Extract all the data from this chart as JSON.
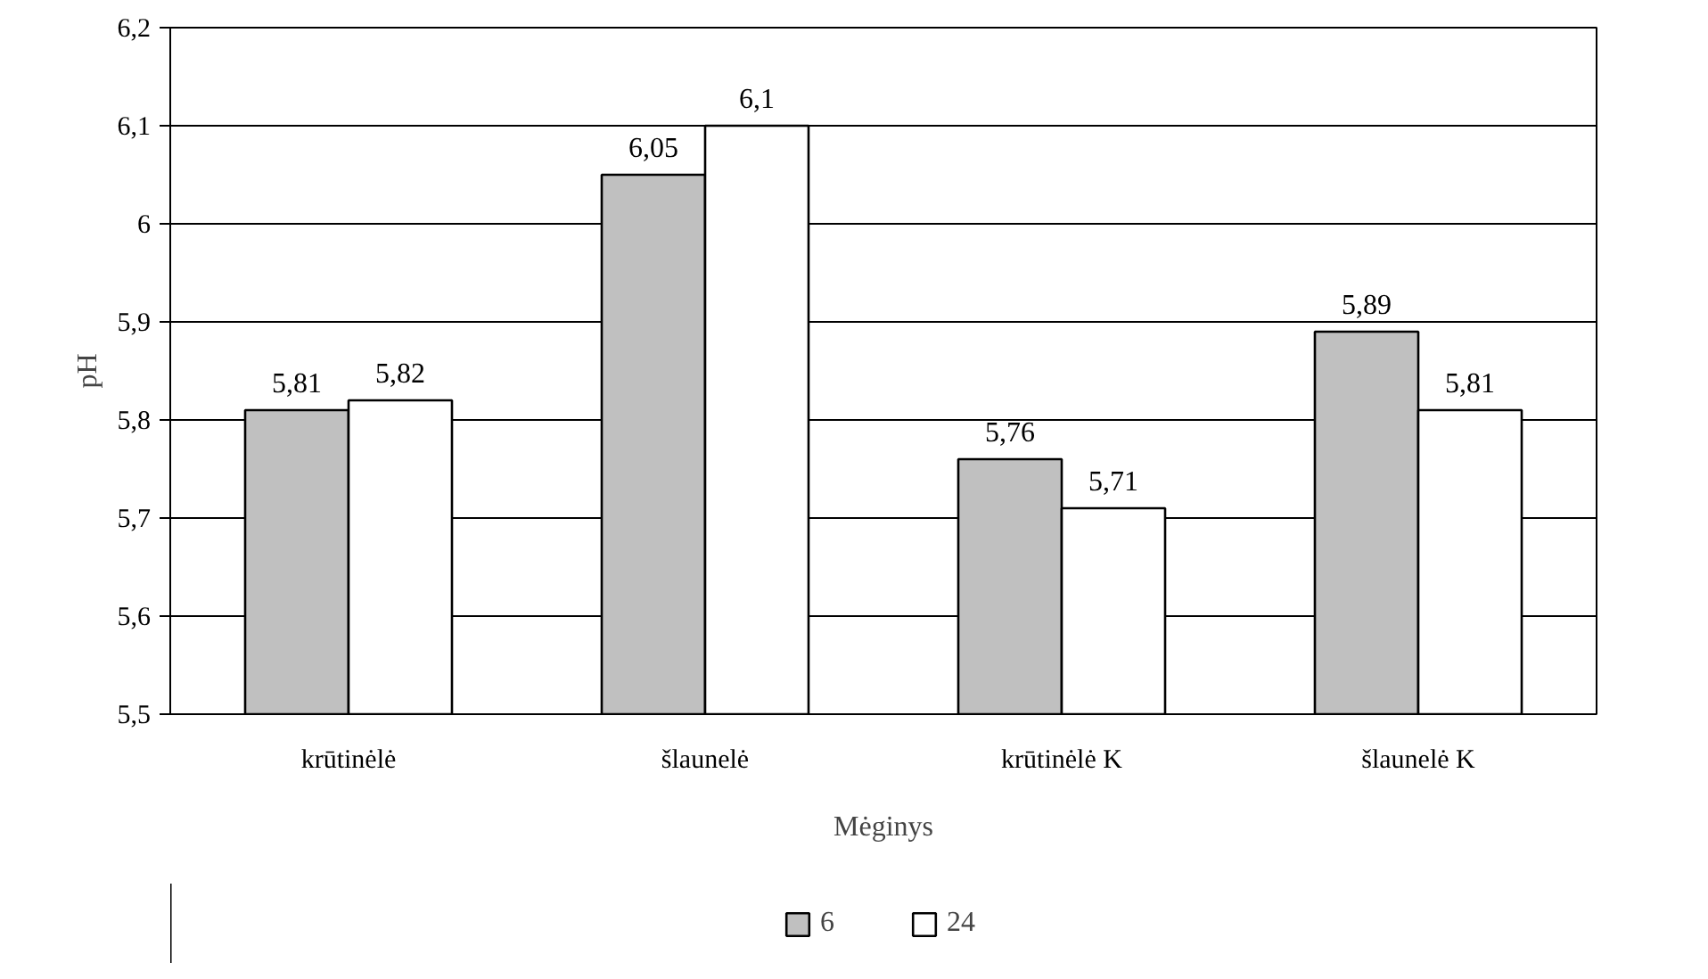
{
  "chart_data": {
    "type": "bar",
    "xlabel": "Mėginys",
    "ylabel": "pH",
    "categories": [
      "krūtinėlė",
      "šlaunelė",
      "krūtinėlė K",
      "šlaunelė K"
    ],
    "series": [
      {
        "name": "6",
        "color": "#c0c0c0",
        "values": [
          5.81,
          6.05,
          5.76,
          5.89
        ],
        "value_labels": [
          "5,81",
          "6,05",
          "5,76",
          "5,89"
        ]
      },
      {
        "name": "24",
        "color": "#ffffff",
        "values": [
          5.82,
          6.1,
          5.71,
          5.81
        ],
        "value_labels": [
          "5,82",
          "6,1",
          "5,71",
          "5,81"
        ]
      }
    ],
    "ylim": [
      5.5,
      6.2
    ],
    "yticks": [
      {
        "value": 5.5,
        "label": "5,5"
      },
      {
        "value": 5.6,
        "label": "5,6"
      },
      {
        "value": 5.7,
        "label": "5,7"
      },
      {
        "value": 5.8,
        "label": "5,8"
      },
      {
        "value": 5.9,
        "label": "5,9"
      },
      {
        "value": 6,
        "label": "6"
      },
      {
        "value": 6.1,
        "label": "6,1"
      },
      {
        "value": 6.2,
        "label": "6,2"
      }
    ],
    "grid": "y",
    "legend": "bottom"
  }
}
